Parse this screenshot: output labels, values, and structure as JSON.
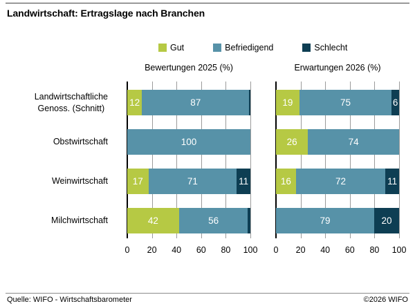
{
  "header": {
    "title": "Landwirtschaft: Ertragslage nach Branchen"
  },
  "chart_data": {
    "type": "bar",
    "variant": "horizontal-stacked",
    "legend": [
      {
        "label": "Gut",
        "color": "#b6c944"
      },
      {
        "label": "Befriedigend",
        "color": "#5792a8"
      },
      {
        "label": "Schlecht",
        "color": "#0e3e53"
      }
    ],
    "categories": [
      "Landwirtschaftliche\nGenoss. (Schnitt)",
      "Obstwirtschaft",
      "Weinwirtschaft",
      "Milchwirtschaft"
    ],
    "panels": [
      {
        "title": "Bewertungen 2025 (%)",
        "rows": [
          {
            "gut": 12,
            "befriedigend": 87,
            "schlecht": 1
          },
          {
            "gut": 0,
            "befriedigend": 100,
            "schlecht": 0
          },
          {
            "gut": 17,
            "befriedigend": 71,
            "schlecht": 11
          },
          {
            "gut": 42,
            "befriedigend": 56,
            "schlecht": 2
          }
        ]
      },
      {
        "title": "Erwartungen 2026 (%)",
        "rows": [
          {
            "gut": 19,
            "befriedigend": 75,
            "schlecht": 6
          },
          {
            "gut": 26,
            "befriedigend": 74,
            "schlecht": 0
          },
          {
            "gut": 16,
            "befriedigend": 72,
            "schlecht": 11
          },
          {
            "gut": 0,
            "befriedigend": 79,
            "schlecht": 20
          }
        ]
      }
    ],
    "xticks": [
      0,
      20,
      40,
      60,
      80,
      100
    ],
    "xlim": [
      0,
      100
    ],
    "label_min_value_to_show": 5,
    "colors": {
      "gridline": "#9a9a9a",
      "axis": "#000000",
      "bar_label": "#ffffff"
    }
  },
  "footer": {
    "source": "Quelle: WIFO - Wirtschaftsbarometer",
    "copyright": "©2026 WIFO"
  }
}
